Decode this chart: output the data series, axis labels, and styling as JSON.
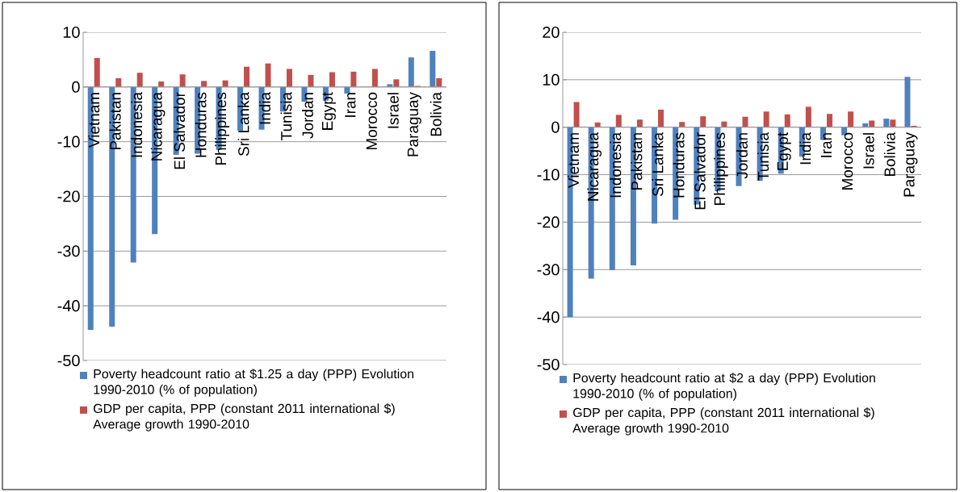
{
  "chart_data": [
    {
      "type": "bar",
      "categories": [
        "Vietnam",
        "Pakistan",
        "Indonesia",
        "Nicaragua",
        "El Salvador",
        "Honduras",
        "Philippines",
        "Sri Lanka",
        "India",
        "Tunisia",
        "Jordan",
        "Egypt",
        "Iran",
        "Morocco",
        "Israel",
        "Paraguay",
        "Bolivia"
      ],
      "series": [
        {
          "name": "Poverty headcount ratio at $1.25 a day (PPP) Evolution 1990-2010 (% of population)",
          "color": "#4f81bd",
          "values": [
            -44.4,
            -43.8,
            -32.1,
            -26.9,
            -12.4,
            -12.2,
            -11.5,
            -8.0,
            -7.8,
            -4.5,
            -2.7,
            -2.5,
            -1.2,
            null,
            0.5,
            5.4,
            6.6
          ]
        },
        {
          "name": "GDP per capita, PPP (constant 2011 international $) Average growth 1990-2010",
          "color": "#c0504d",
          "values": [
            5.3,
            1.6,
            2.6,
            1.0,
            2.3,
            1.1,
            1.2,
            3.7,
            4.3,
            3.3,
            2.2,
            2.7,
            2.8,
            3.3,
            1.4,
            0.2,
            1.6
          ]
        }
      ],
      "ylim": [
        -50,
        10
      ],
      "yticks": [
        -50,
        -40,
        -30,
        -20,
        -10,
        0,
        10
      ],
      "grid": "y",
      "legend": "bottom"
    },
    {
      "type": "bar",
      "categories": [
        "Vietnam",
        "Nicaragua",
        "Indonesia",
        "Pakistan",
        "Sri Lanka",
        "Honduras",
        "El Salvador",
        "Philippines",
        "Jordan",
        "Tunisia",
        "Egypt",
        "India",
        "Iran",
        "Morocco",
        "Israel",
        "Bolivia",
        "Paraguay"
      ],
      "series": [
        {
          "name": "Poverty headcount ratio at $2 a day (PPP) Evolution 1990-2010 (% of population)",
          "color": "#4f81bd",
          "values": [
            -40.0,
            -31.9,
            -30.1,
            -29.1,
            -20.3,
            -19.5,
            -16.3,
            -13.5,
            -12.4,
            -11.3,
            -9.8,
            -6.2,
            -2.7,
            -1.7,
            0.8,
            1.8,
            10.6
          ]
        },
        {
          "name": "GDP per capita, PPP (constant 2011 international $) Average growth 1990-2010",
          "color": "#c0504d",
          "values": [
            5.3,
            1.0,
            2.6,
            1.6,
            3.7,
            1.1,
            2.3,
            1.2,
            2.2,
            3.3,
            2.7,
            4.3,
            2.8,
            3.3,
            1.4,
            1.6,
            0.3
          ]
        }
      ],
      "ylim": [
        -50,
        20
      ],
      "yticks": [
        -50,
        -40,
        -30,
        -20,
        -10,
        0,
        10,
        20
      ],
      "grid": "y",
      "legend": "bottom"
    }
  ]
}
